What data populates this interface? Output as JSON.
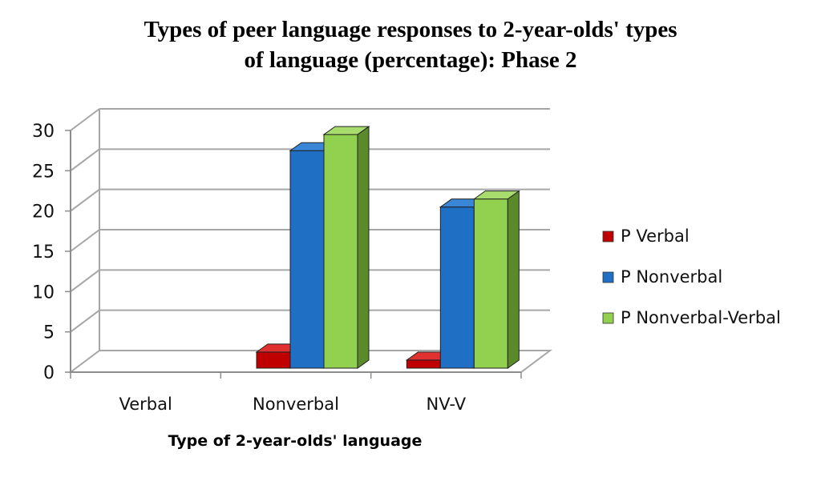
{
  "chart_data": {
    "type": "bar",
    "title_lines": [
      "Types of peer language responses to 2-year-olds' types",
      "of language (percentage): Phase 2"
    ],
    "xlabel": "Type of 2-year-olds' language",
    "ylabel": "",
    "categories": [
      "Verbal",
      "Nonverbal",
      "NV-V"
    ],
    "series": [
      {
        "name": "P Verbal",
        "values": [
          0,
          2,
          1
        ],
        "color": "#c00000",
        "color_top": "#e03030",
        "color_side": "#7a0000"
      },
      {
        "name": "P Nonverbal",
        "values": [
          0,
          27,
          20
        ],
        "color": "#1f6fc5",
        "color_top": "#3a86d6",
        "color_side": "#124a85"
      },
      {
        "name": "P Nonverbal-Verbal",
        "values": [
          0,
          29,
          21
        ],
        "color": "#92d050",
        "color_top": "#a8dd6e",
        "color_side": "#5a8a2a"
      }
    ],
    "ylim": [
      0,
      30
    ],
    "yticks": [
      "0",
      "5",
      "10",
      "15",
      "20",
      "25",
      "30"
    ],
    "grid": true,
    "legend_position": "right",
    "three_d": true
  }
}
